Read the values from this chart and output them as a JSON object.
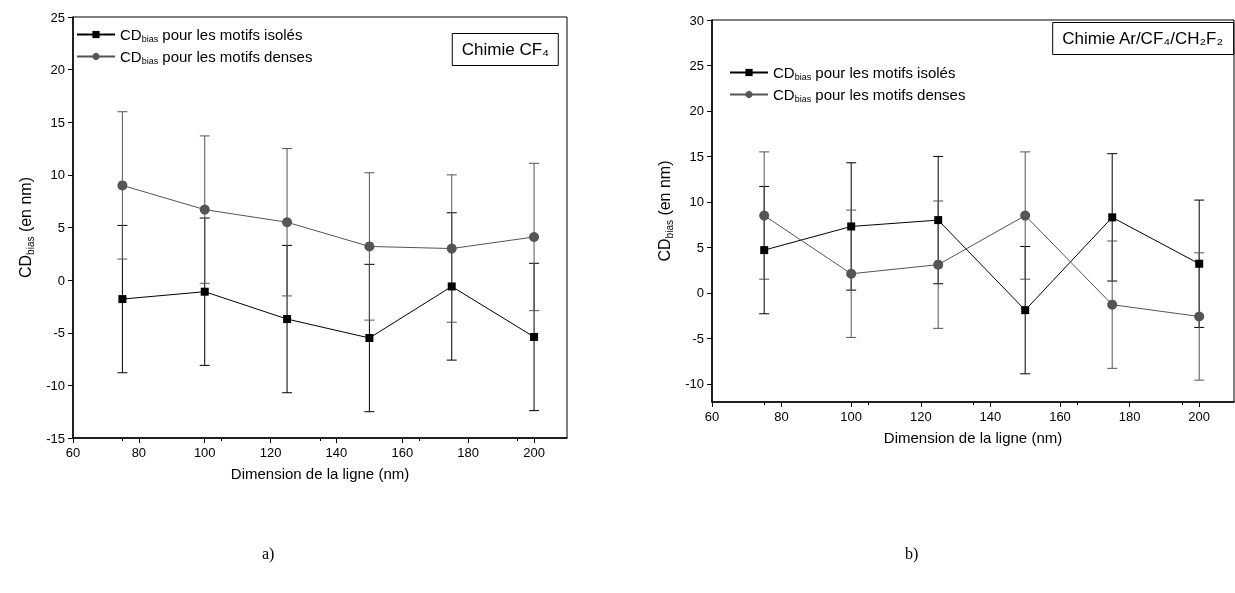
{
  "chart_data": [
    {
      "type": "line",
      "title": "Chimie CF₄",
      "xlabel": "Dimension de la ligne (nm)",
      "ylabel": "CD$_{bias}$ (en nm)",
      "x": [
        75,
        100,
        125,
        150,
        175,
        200
      ],
      "series": [
        {
          "name": "CD$_{bias}$ pour les motifs isolés",
          "color": "#000000",
          "marker": "square",
          "values": [
            -1.8,
            -1.1,
            -3.7,
            -5.5,
            -0.6,
            -5.4
          ],
          "errors": [
            7,
            7,
            7,
            7,
            7,
            7
          ]
        },
        {
          "name": "CD$_{bias}$ pour les motifs denses",
          "color": "#555555",
          "marker": "circle",
          "values": [
            9.0,
            6.7,
            5.5,
            3.2,
            3.0,
            4.1
          ],
          "errors": [
            7,
            7,
            7,
            7,
            7,
            7
          ]
        }
      ],
      "xlim": [
        60,
        210
      ],
      "xticks": [
        60,
        80,
        100,
        120,
        140,
        160,
        180,
        200
      ],
      "ylim": [
        -15,
        25
      ],
      "yticks": [
        -15,
        -10,
        -5,
        0,
        5,
        10,
        15,
        20,
        25
      ],
      "grid": false,
      "legend": "top left",
      "annotations": [
        "a)"
      ]
    },
    {
      "type": "line",
      "title": "Chimie Ar/CF₄/CH₂F₂",
      "xlabel": "Dimension de la ligne (nm)",
      "ylabel": "CD$_{bias}$ (en nm)",
      "x": [
        75,
        100,
        125,
        150,
        175,
        200
      ],
      "series": [
        {
          "name": "CD$_{bias}$ pour les motifs isolés",
          "color": "#000000",
          "marker": "square",
          "values": [
            4.7,
            7.3,
            8.0,
            -1.9,
            8.3,
            3.2
          ],
          "errors": [
            7,
            7,
            7,
            7,
            7,
            7
          ]
        },
        {
          "name": "CD$_{bias}$ pour les motifs denses",
          "color": "#555555",
          "marker": "circle",
          "values": [
            8.5,
            2.1,
            3.1,
            8.5,
            -1.3,
            -2.6
          ],
          "errors": [
            7,
            7,
            7,
            7,
            7,
            7
          ]
        }
      ],
      "xlim": [
        60,
        210
      ],
      "xticks": [
        60,
        80,
        100,
        120,
        140,
        160,
        180,
        200
      ],
      "ylim": [
        -12,
        30
      ],
      "yticks": [
        -10,
        -5,
        0,
        5,
        10,
        15,
        20,
        25,
        30
      ],
      "grid": false,
      "legend": "top left",
      "annotations": [
        "b)"
      ]
    }
  ]
}
